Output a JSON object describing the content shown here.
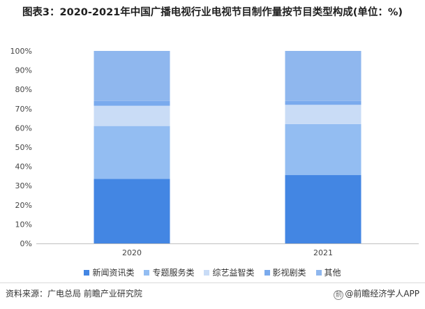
{
  "title": "图表3：2020-2021年中国广播电视行业电视节目制作量按节目类型构成(单位：%)",
  "colors": {
    "新闻资讯类": "#4386e3",
    "专题服务类": "#93bdf2",
    "综艺益智类": "#c9dcf6",
    "影视剧类": "#7aaaed",
    "其他": "#8fb7ee"
  },
  "chart_data": {
    "type": "bar",
    "stacked": true,
    "percent": true,
    "categories": [
      "2020",
      "2021"
    ],
    "ylim": [
      0,
      100
    ],
    "yticks": [
      "0%",
      "10%",
      "20%",
      "30%",
      "40%",
      "50%",
      "60%",
      "70%",
      "80%",
      "90%",
      "100%"
    ],
    "xlabel": "",
    "ylabel": "",
    "series": [
      {
        "name": "新闻资讯类",
        "values": [
          33.5,
          35.5
        ]
      },
      {
        "name": "专题服务类",
        "values": [
          27.5,
          26.5
        ]
      },
      {
        "name": "综艺益智类",
        "values": [
          10.5,
          10.0
        ]
      },
      {
        "name": "影视剧类",
        "values": [
          2.5,
          2.0
        ]
      },
      {
        "name": "其他",
        "values": [
          26.0,
          26.0
        ]
      }
    ],
    "legend_position": "bottom"
  },
  "footer": {
    "source": "资料来源：广电总局 前瞻产业研究院",
    "credit": "@前瞻经济学人APP",
    "credit_logo": "前"
  }
}
